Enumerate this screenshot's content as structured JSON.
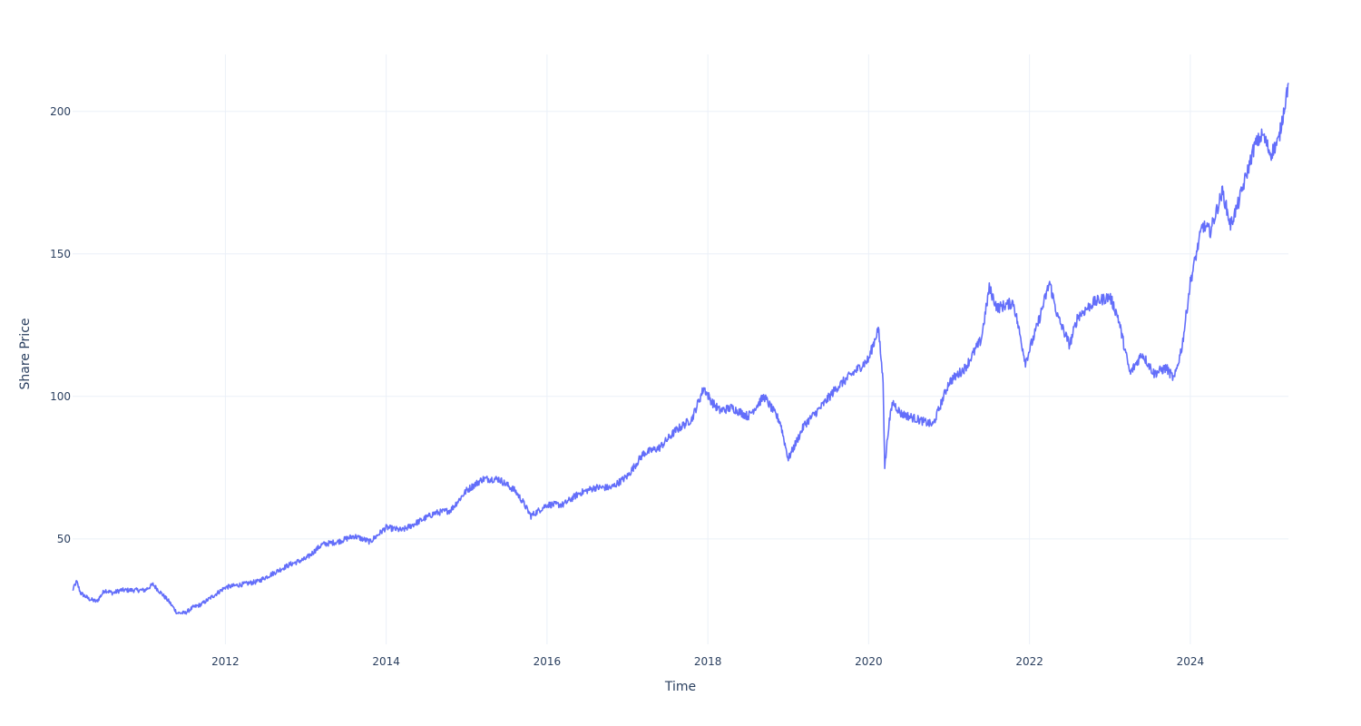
{
  "chart_data": {
    "type": "line",
    "title": "",
    "xlabel": "Time",
    "ylabel": "Share Price",
    "xlim": [
      2010.1,
      2025.22
    ],
    "ylim": [
      13,
      220
    ],
    "x_ticks": [
      2012,
      2014,
      2016,
      2018,
      2020,
      2022,
      2024
    ],
    "x_tick_labels": [
      "2012",
      "2014",
      "2016",
      "2018",
      "2020",
      "2022",
      "2024"
    ],
    "y_ticks": [
      50,
      100,
      150,
      200
    ],
    "y_tick_labels": [
      "50",
      "100",
      "150",
      "200"
    ],
    "grid": true,
    "line_color": "#636efa",
    "series": [
      {
        "x": [
          2010.1,
          2010.15,
          2010.2,
          2010.3,
          2010.4,
          2010.5,
          2010.6,
          2010.7,
          2010.8,
          2010.9,
          2011.0,
          2011.1,
          2011.2,
          2011.3,
          2011.4,
          2011.5,
          2011.6,
          2011.7,
          2011.75,
          2011.85,
          2012.0,
          2012.2,
          2012.4,
          2012.6,
          2012.8,
          2013.0,
          2013.2,
          2013.4,
          2013.6,
          2013.8,
          2014.0,
          2014.2,
          2014.4,
          2014.6,
          2014.8,
          2015.0,
          2015.2,
          2015.4,
          2015.6,
          2015.7,
          2015.8,
          2016.0,
          2016.2,
          2016.4,
          2016.6,
          2016.8,
          2017.0,
          2017.2,
          2017.4,
          2017.6,
          2017.8,
          2017.95,
          2018.05,
          2018.15,
          2018.3,
          2018.5,
          2018.7,
          2018.9,
          2019.0,
          2019.2,
          2019.4,
          2019.6,
          2019.8,
          2020.0,
          2020.12,
          2020.18,
          2020.2,
          2020.25,
          2020.3,
          2020.4,
          2020.6,
          2020.8,
          2021.0,
          2021.2,
          2021.4,
          2021.5,
          2021.6,
          2021.8,
          2021.95,
          2022.1,
          2022.25,
          2022.35,
          2022.5,
          2022.6,
          2022.8,
          2023.0,
          2023.1,
          2023.25,
          2023.4,
          2023.55,
          2023.7,
          2023.8,
          2023.9,
          2024.0,
          2024.15,
          2024.25,
          2024.4,
          2024.5,
          2024.6,
          2024.8,
          2024.9,
          2025.0,
          2025.1,
          2025.22
        ],
        "y": [
          32,
          35,
          31,
          29,
          28,
          32,
          31,
          32,
          32,
          32,
          32,
          34,
          31,
          28,
          24,
          24,
          26,
          27,
          28,
          30,
          33,
          34,
          35,
          38,
          41,
          43,
          48,
          49,
          51,
          49,
          54,
          53,
          56,
          59,
          60,
          67,
          71,
          71,
          67,
          63,
          58,
          62,
          62,
          66,
          68,
          68,
          72,
          80,
          82,
          88,
          92,
          103,
          98,
          95,
          96,
          93,
          100,
          91,
          78,
          90,
          96,
          103,
          108,
          113,
          124,
          105,
          75,
          90,
          98,
          94,
          92,
          90,
          105,
          110,
          120,
          138,
          131,
          133,
          112,
          125,
          140,
          128,
          118,
          128,
          133,
          135,
          128,
          108,
          115,
          108,
          110,
          106,
          118,
          140,
          160,
          158,
          172,
          160,
          168,
          188,
          192,
          185,
          190,
          210
        ]
      }
    ]
  }
}
